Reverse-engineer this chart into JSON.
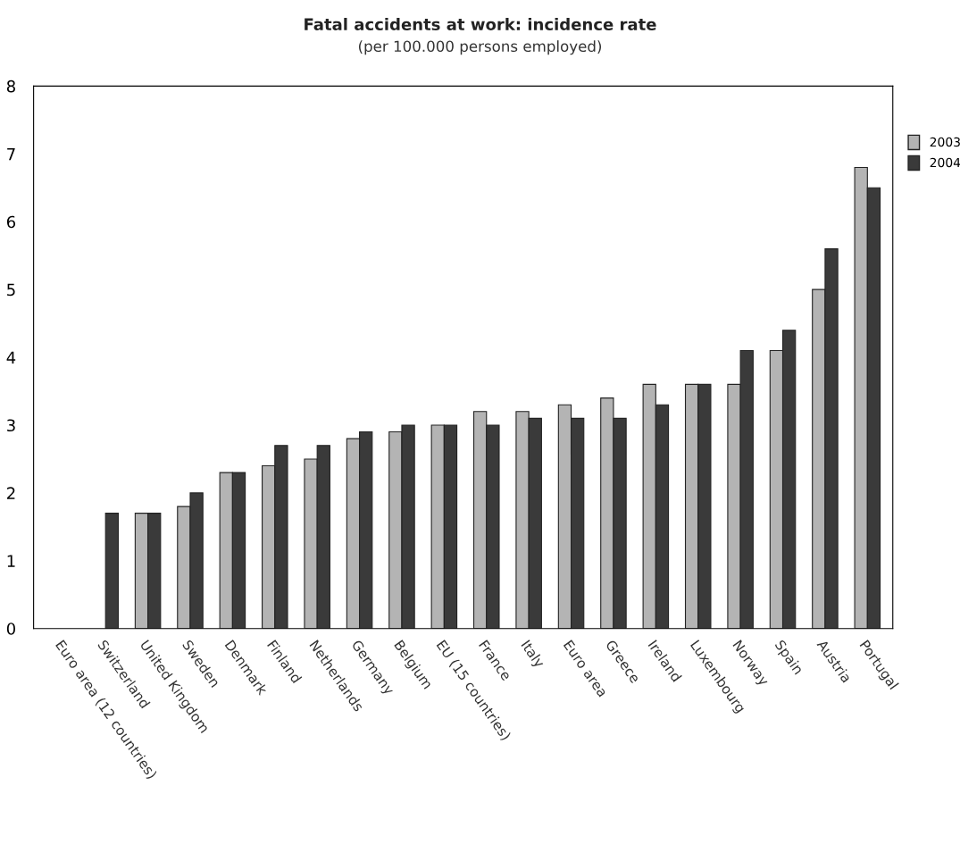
{
  "chart_data": {
    "type": "bar",
    "title": "Fatal accidents at work: incidence rate",
    "subtitle": "(per 100.000 persons employed)",
    "categories": [
      "Euro area (12 countries)",
      "Switzerland",
      "United Kingdom",
      "Sweden",
      "Denmark",
      "Finland",
      "Netherlands",
      "Germany",
      "Belgium",
      "EU (15 countries)",
      "France",
      "Italy",
      "Euro area",
      "Greece",
      "Ireland",
      "Luxembourg",
      "Norway",
      "Spain",
      "Austria",
      "Portugal"
    ],
    "series": [
      {
        "name": "2003",
        "color": "#b4b4b4",
        "values": [
          null,
          null,
          1.7,
          1.8,
          2.3,
          2.4,
          2.5,
          2.8,
          2.9,
          3.0,
          3.2,
          3.2,
          3.3,
          3.4,
          3.6,
          3.6,
          3.6,
          4.1,
          5.0,
          6.8
        ]
      },
      {
        "name": "2004",
        "color": "#3a3a3a",
        "values": [
          null,
          1.7,
          1.7,
          2.0,
          2.3,
          2.7,
          2.7,
          2.9,
          3.0,
          3.0,
          3.0,
          3.1,
          3.1,
          3.1,
          3.3,
          3.6,
          4.1,
          4.4,
          5.6,
          6.5
        ]
      }
    ],
    "ylim": [
      0,
      8
    ],
    "yticks": [
      0,
      1,
      2,
      3,
      4,
      5,
      6,
      7,
      8
    ],
    "grid": false,
    "legend": "top right"
  }
}
